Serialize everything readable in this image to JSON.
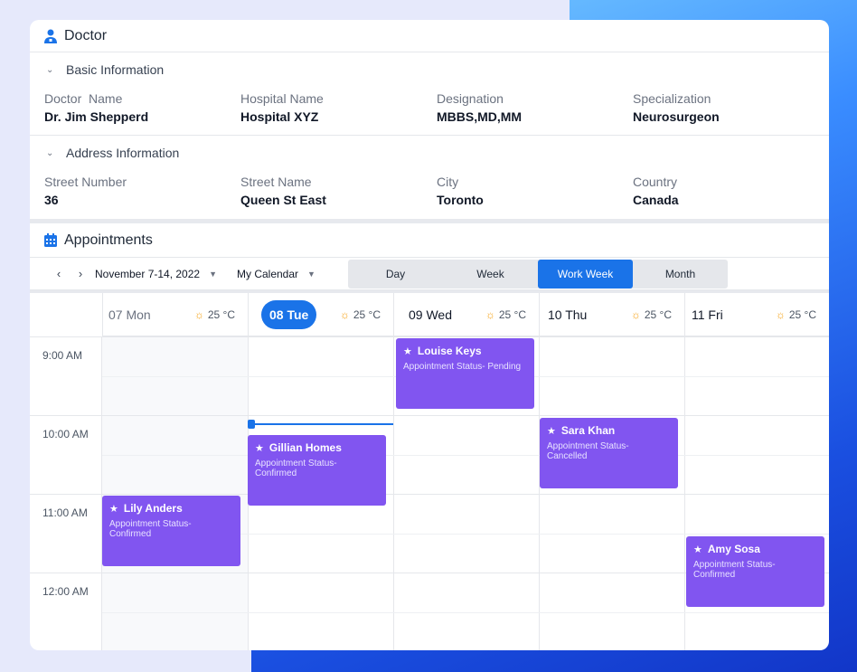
{
  "doctor": {
    "title": "Doctor",
    "icon": "doctor-icon",
    "basic": {
      "heading": "Basic Information",
      "fields": [
        {
          "label": "Doctor  Name",
          "value": "Dr. Jim Shepperd"
        },
        {
          "label": "Hospital Name",
          "value": "Hospital XYZ"
        },
        {
          "label": "Designation",
          "value": "MBBS,MD,MM"
        },
        {
          "label": "Specialization",
          "value": "Neurosurgeon"
        }
      ]
    },
    "address": {
      "heading": "Address Information",
      "fields": [
        {
          "label": "Street Number",
          "value": "36"
        },
        {
          "label": "Street Name",
          "value": "Queen St East"
        },
        {
          "label": "City",
          "value": "Toronto"
        },
        {
          "label": "Country",
          "value": "Canada"
        }
      ]
    }
  },
  "appointments": {
    "title": "Appointments",
    "icon": "calendar-icon",
    "date_range": "November 7-14, 2022",
    "calendar": "My Calendar",
    "views": [
      "Day",
      "Week",
      "Work Week",
      "Month"
    ],
    "active_view": "Work Week",
    "days": [
      {
        "label": "07 Mon",
        "temp": "25 °C",
        "state": "past"
      },
      {
        "label": "08 Tue",
        "temp": "25 °C",
        "state": "today"
      },
      {
        "label": "09 Wed",
        "temp": "25 °C",
        "state": "future"
      },
      {
        "label": "10 Thu",
        "temp": "25 °C",
        "state": "future"
      },
      {
        "label": "11 Fri",
        "temp": "25 °C",
        "state": "future"
      }
    ],
    "times": [
      "9:00 AM",
      "10:00 AM",
      "11:00 AM",
      "12:00 AM"
    ],
    "events": [
      {
        "name": "Louise Keys",
        "status": "Appointment Status- Pending"
      },
      {
        "name": "Sara Khan",
        "status": "Appointment Status- Cancelled"
      },
      {
        "name": "Gillian Homes",
        "status": "Appointment Status- Confirmed"
      },
      {
        "name": "Lily Anders",
        "status": "Appointment Status- Confirmed"
      },
      {
        "name": "Amy Sosa",
        "status": "Appointment Status- Confirmed"
      }
    ],
    "accent_color": "#1a73e8",
    "event_color": "#8155f0"
  }
}
